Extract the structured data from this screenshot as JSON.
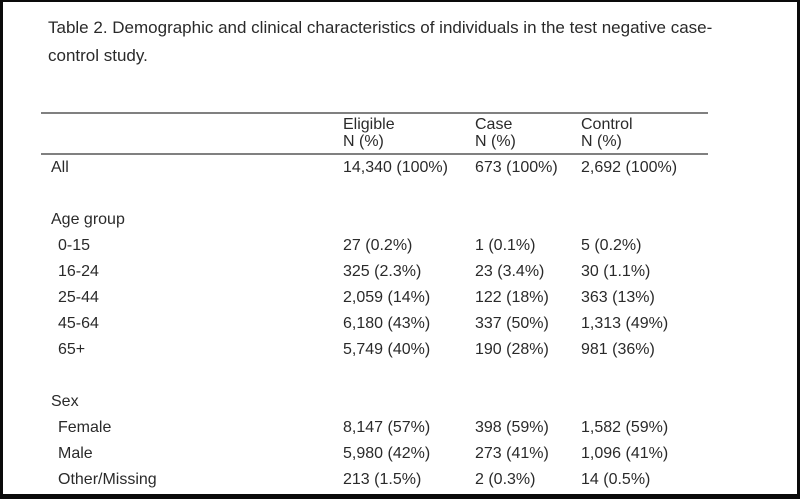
{
  "caption": "Table 2. Demographic and clinical characteristics of individuals in the test negative case-control study.",
  "colors": {
    "page_background": "#ffffff",
    "frame_border": "#0a0a0a",
    "rule_line": "#808080",
    "text": "#2a2a2a"
  },
  "table": {
    "columns": [
      {
        "label": "Eligible",
        "sub": "N (%)"
      },
      {
        "label": "Case",
        "sub": "N (%)"
      },
      {
        "label": "Control",
        "sub": "N (%)"
      }
    ],
    "rows": [
      {
        "type": "data",
        "indent": false,
        "label": "All",
        "values": [
          "14,340 (100%)",
          "673 (100%)",
          "2,692 (100%)"
        ]
      },
      {
        "type": "spacer",
        "indent": false,
        "label": "",
        "values": [
          "",
          "",
          ""
        ]
      },
      {
        "type": "section",
        "indent": false,
        "label": "Age group",
        "values": [
          "",
          "",
          ""
        ]
      },
      {
        "type": "data",
        "indent": true,
        "label": "0-15",
        "values": [
          "27 (0.2%)",
          "1 (0.1%)",
          "5 (0.2%)"
        ]
      },
      {
        "type": "data",
        "indent": true,
        "label": "16-24",
        "values": [
          "325 (2.3%)",
          "23 (3.4%)",
          "30 (1.1%)"
        ]
      },
      {
        "type": "data",
        "indent": true,
        "label": "25-44",
        "values": [
          "2,059 (14%)",
          "122 (18%)",
          "363 (13%)"
        ]
      },
      {
        "type": "data",
        "indent": true,
        "label": "45-64",
        "values": [
          "6,180 (43%)",
          "337 (50%)",
          "1,313 (49%)"
        ]
      },
      {
        "type": "data",
        "indent": true,
        "label": "65+",
        "values": [
          "5,749 (40%)",
          "190 (28%)",
          "981 (36%)"
        ]
      },
      {
        "type": "spacer",
        "indent": false,
        "label": "",
        "values": [
          "",
          "",
          ""
        ]
      },
      {
        "type": "section",
        "indent": false,
        "label": "Sex",
        "values": [
          "",
          "",
          ""
        ]
      },
      {
        "type": "data",
        "indent": true,
        "label": "Female",
        "values": [
          "8,147 (57%)",
          "398 (59%)",
          "1,582 (59%)"
        ]
      },
      {
        "type": "data",
        "indent": true,
        "label": "Male",
        "values": [
          "5,980 (42%)",
          "273 (41%)",
          "1,096 (41%)"
        ]
      },
      {
        "type": "data",
        "indent": true,
        "label": "Other/Missing",
        "values": [
          "213 (1.5%)",
          "2 (0.3%)",
          "14 (0.5%)"
        ]
      }
    ]
  }
}
